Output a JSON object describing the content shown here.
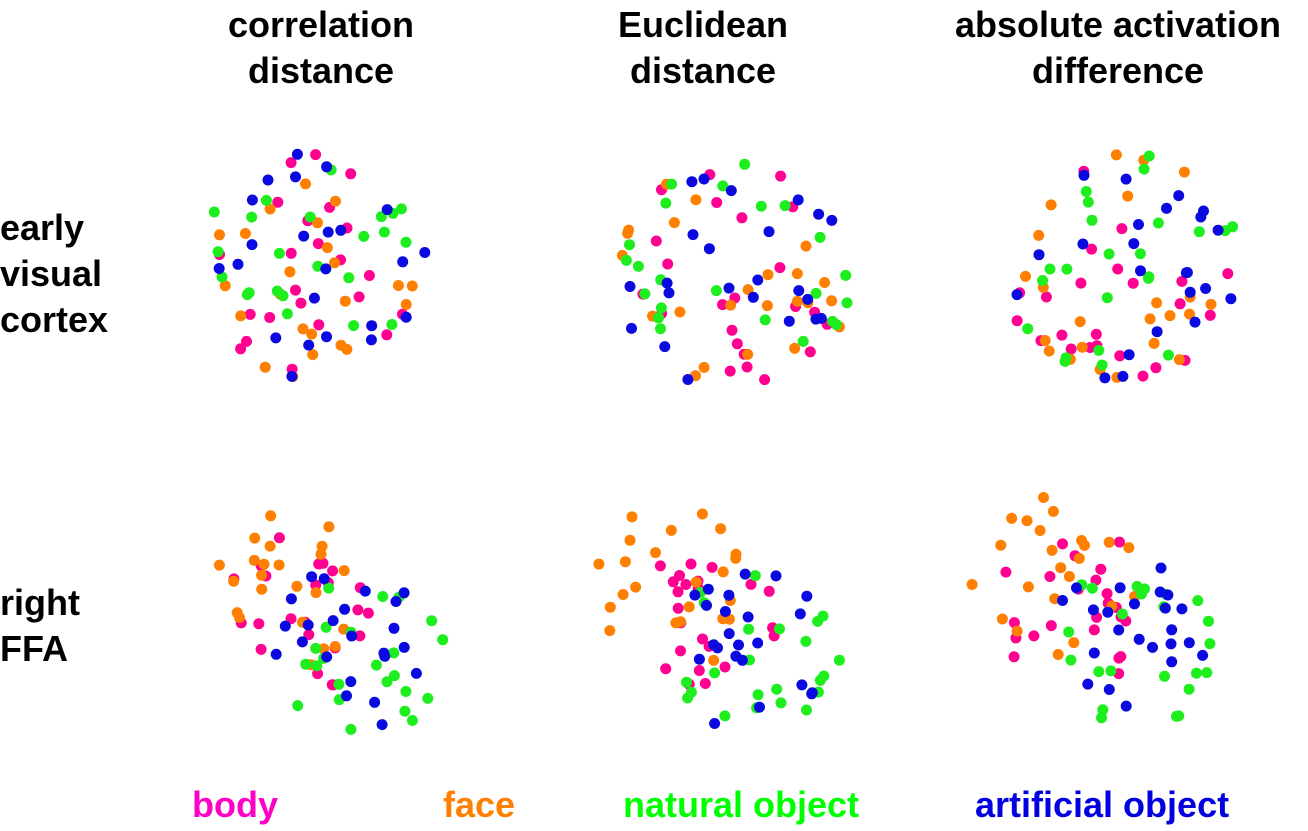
{
  "column_titles": [
    {
      "line1": "correlation",
      "line2": "distance"
    },
    {
      "line1": "Euclidean",
      "line2": "distance"
    },
    {
      "line1": "absolute activation",
      "line2": "difference"
    }
  ],
  "row_labels": [
    {
      "lines": [
        "early",
        "visual",
        "cortex"
      ]
    },
    {
      "lines": [
        "right",
        "FFA"
      ]
    }
  ],
  "legend": [
    {
      "label": "body",
      "color": "#ff00c8"
    },
    {
      "label": "face",
      "color": "#ff8000"
    },
    {
      "label": "natural object",
      "color": "#00ff00"
    },
    {
      "label": "artificial object",
      "color": "#0000e0"
    }
  ],
  "colors": {
    "body": "#ff0090",
    "face": "#ff8000",
    "natural": "#1eee1e",
    "artificial": "#0a0ae0"
  },
  "chart_data": {
    "type": "scatter",
    "description": "MDS arrangements of 92 stimuli, 3 distance measures x 2 brain regions",
    "panels": [
      {
        "row": "early visual cortex",
        "column": "correlation distance",
        "seed": 11,
        "spread": 1.0,
        "categories": {
          "body": 23,
          "face": 23,
          "natural": 23,
          "artificial": 23
        }
      },
      {
        "row": "early visual cortex",
        "column": "Euclidean distance",
        "seed": 23,
        "spread": 1.0,
        "categories": {
          "body": 23,
          "face": 23,
          "natural": 23,
          "artificial": 23
        }
      },
      {
        "row": "early visual cortex",
        "column": "absolute activation difference",
        "seed": 37,
        "spread": 1.0,
        "categories": {
          "body": 23,
          "face": 23,
          "natural": 23,
          "artificial": 23
        }
      },
      {
        "row": "right FFA",
        "column": "correlation distance",
        "seed": 41,
        "clustered": true,
        "categories": {
          "body": 23,
          "face": 23,
          "natural": 23,
          "artificial": 23
        }
      },
      {
        "row": "right FFA",
        "column": "Euclidean distance",
        "seed": 53,
        "clustered": true,
        "categories": {
          "body": 23,
          "face": 23,
          "natural": 23,
          "artificial": 23
        }
      },
      {
        "row": "right FFA",
        "column": "absolute activation difference",
        "seed": 67,
        "clustered": true,
        "categories": {
          "body": 23,
          "face": 23,
          "natural": 23,
          "artificial": 23
        }
      }
    ]
  }
}
